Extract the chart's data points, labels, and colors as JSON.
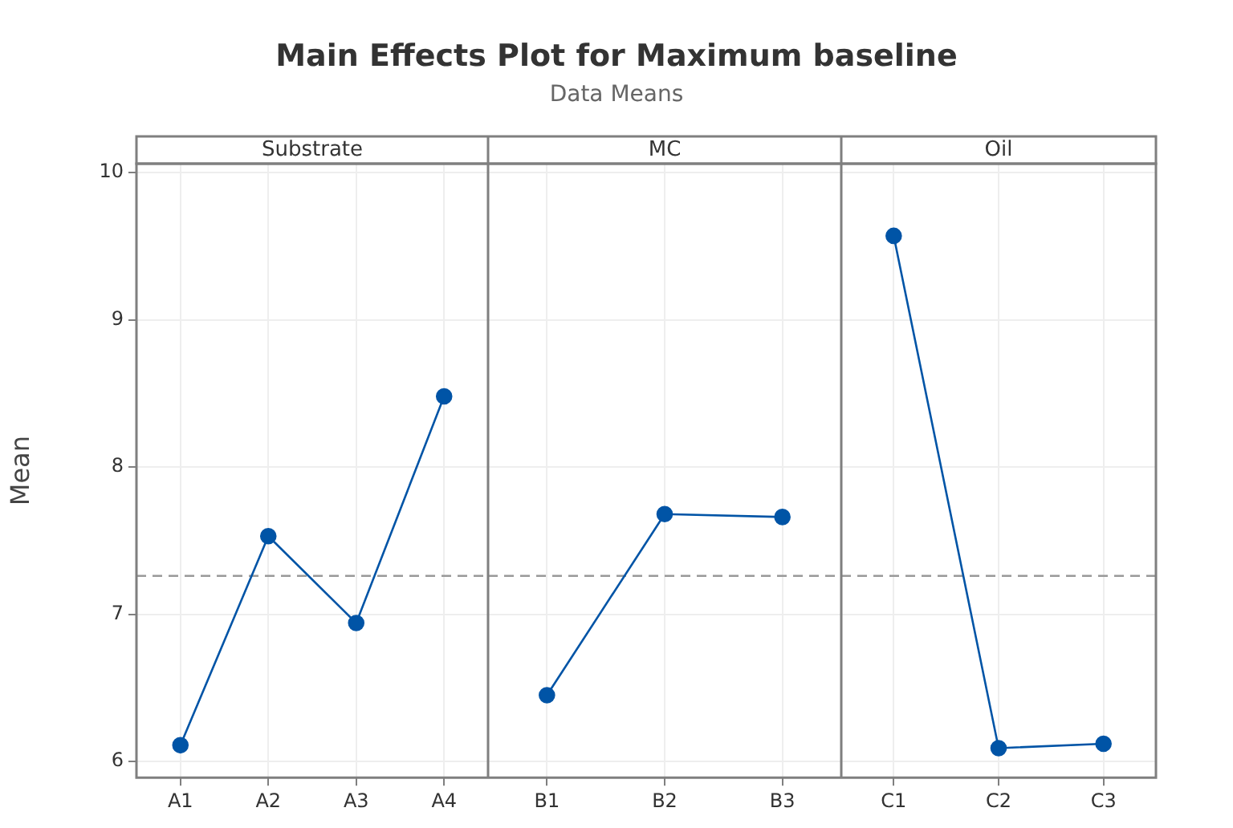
{
  "chart_data": [
    {
      "type": "line",
      "title": "Substrate",
      "ylabel": "Mean",
      "annotations": [
        "Main Effects Plot for Maximum baseline",
        "Data Means"
      ],
      "categories": [
        "A1",
        "A2",
        "A3",
        "A4"
      ],
      "series": [
        {
          "color": "#0054a6",
          "values": [
            6.11,
            7.53,
            6.94,
            8.48
          ]
        }
      ],
      "ylim": [
        5.89,
        10.06
      ],
      "yticks": [
        6,
        7,
        8,
        9,
        10
      ],
      "grid": true,
      "marker": "circle",
      "ref_lines": [
        {
          "axis": "y",
          "value": 7.26,
          "color": "#999999",
          "line_style": "dashed"
        }
      ]
    },
    {
      "type": "line",
      "title": "MC",
      "categories": [
        "B1",
        "B2",
        "B3"
      ],
      "series": [
        {
          "color": "#0054a6",
          "values": [
            6.45,
            7.68,
            7.66
          ]
        }
      ],
      "ylim": [
        5.89,
        10.06
      ],
      "yticks": [
        6,
        7,
        8,
        9,
        10
      ],
      "grid": true,
      "marker": "circle",
      "tick_labels": "x",
      "ref_lines": [
        {
          "axis": "y",
          "value": 7.26,
          "color": "#999999",
          "line_style": "dashed"
        }
      ]
    },
    {
      "type": "line",
      "title": "Oil",
      "categories": [
        "C1",
        "C2",
        "C3"
      ],
      "series": [
        {
          "color": "#0054a6",
          "values": [
            9.57,
            6.09,
            6.12
          ]
        }
      ],
      "ylim": [
        5.89,
        10.06
      ],
      "yticks": [
        6,
        7,
        8,
        9,
        10
      ],
      "grid": true,
      "marker": "circle",
      "tick_labels": "x",
      "ref_lines": [
        {
          "axis": "y",
          "value": 7.26,
          "color": "#999999",
          "line_style": "dashed"
        }
      ]
    }
  ]
}
